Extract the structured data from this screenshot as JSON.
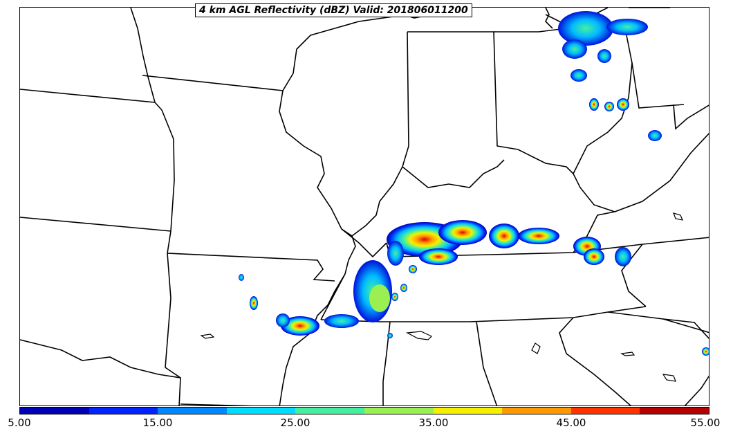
{
  "title": "4 km AGL Reflectivity (dBZ) Valid: 201806011200",
  "colorbar": {
    "colors": [
      "#0000b4",
      "#0022ff",
      "#0088ff",
      "#00ddff",
      "#44f0a0",
      "#99f050",
      "#f5f000",
      "#ff9900",
      "#ff3300",
      "#b40000"
    ],
    "ticks": [
      "5.00",
      "15.00",
      "25.00",
      "35.00",
      "45.00",
      "55.00"
    ]
  },
  "map": {
    "layers": [
      "state-boundaries",
      "coastlines",
      "reflectivity-overlay"
    ],
    "line_color": "#000000"
  }
}
